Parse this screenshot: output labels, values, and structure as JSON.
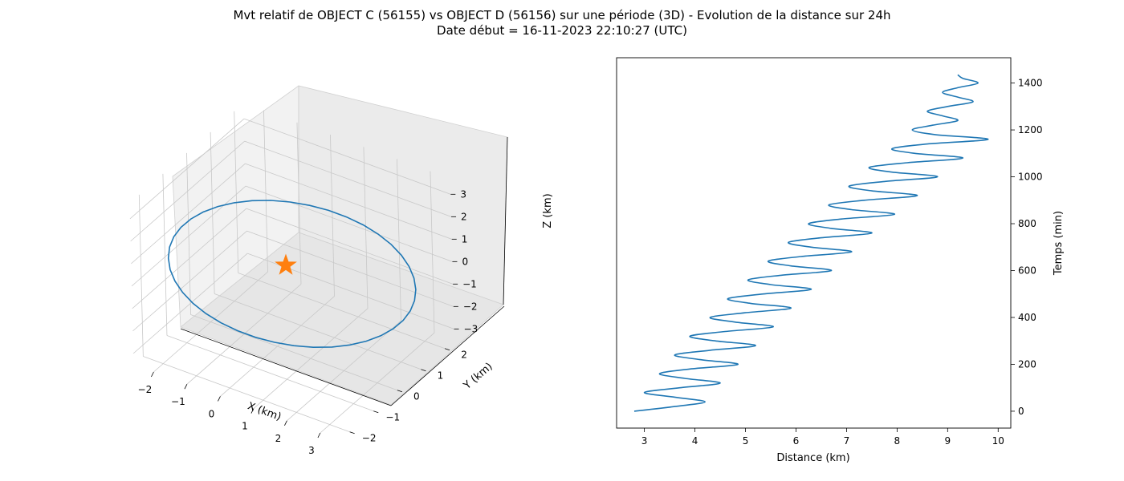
{
  "figure": {
    "title_line1": "Mvt relatif de OBJECT C (56155) vs OBJECT D (56156) sur une période (3D) - Evolution de la distance sur 24h",
    "title_line2": "Date début = 16-11-2023 22:10:27 (UTC)"
  },
  "chart_data": [
    {
      "type": "line3d",
      "title": "",
      "xlabel": "X (km)",
      "ylabel": "Y (km)",
      "zlabel": "Z (km)",
      "xlim": [
        -2.6,
        3.6
      ],
      "ylim": [
        -2.4,
        2.4
      ],
      "zlim": [
        -3.5,
        3.7
      ],
      "xticks": [
        "−2",
        "−1",
        "0",
        "1",
        "2",
        "3"
      ],
      "yticks": [
        "−2",
        "−1",
        "0",
        "1",
        "2"
      ],
      "zticks": [
        "−3",
        "−2",
        "−1",
        "0",
        "1",
        "2",
        "3"
      ],
      "grid": true,
      "line_color": "#1f77b4",
      "marker": {
        "shape": "star",
        "color": "#ff7f0e",
        "x": 0,
        "y": 0,
        "z": 0
      },
      "trajectory": {
        "x_center": 0.5,
        "x_amplitude": 3.0,
        "y_center": 0.0,
        "y_amplitude": 1.0,
        "z_amplitude": 3.2
      }
    },
    {
      "type": "line",
      "title": "",
      "xlabel": "Distance (km)",
      "ylabel": "Temps (min)",
      "xlim": [
        2.45,
        10.25
      ],
      "ylim": [
        -72,
        1508
      ],
      "xticks": [
        3,
        4,
        5,
        6,
        7,
        8,
        9,
        10
      ],
      "yticks": [
        0,
        200,
        400,
        600,
        800,
        1000,
        1200,
        1400
      ],
      "yaxis_position": "right",
      "grid": false,
      "line_color": "#1f77b4",
      "series": [
        {
          "time_min": [
            0,
            20,
            40,
            60,
            80,
            100,
            120,
            140,
            160,
            180,
            200,
            220,
            240,
            260,
            280,
            300,
            320,
            340,
            360,
            380,
            400,
            420,
            440,
            460,
            480,
            500,
            520,
            540,
            560,
            580,
            600,
            620,
            640,
            660,
            680,
            700,
            720,
            740,
            760,
            780,
            800,
            820,
            840,
            860,
            880,
            900,
            920,
            940,
            960,
            980,
            1000,
            1020,
            1040,
            1060,
            1080,
            1100,
            1120,
            1140,
            1160,
            1180,
            1200,
            1220,
            1240,
            1260,
            1280,
            1300,
            1320,
            1340,
            1360,
            1380,
            1400,
            1420,
            1435
          ],
          "distance_km": [
            2.8,
            3.6,
            4.2,
            3.6,
            3.0,
            3.7,
            4.5,
            3.8,
            3.3,
            3.9,
            4.85,
            4.1,
            3.6,
            4.3,
            5.2,
            4.4,
            3.9,
            4.6,
            5.55,
            4.8,
            4.3,
            5.0,
            5.9,
            5.1,
            4.65,
            5.35,
            6.3,
            5.5,
            5.05,
            5.7,
            6.7,
            5.9,
            5.45,
            6.1,
            7.1,
            6.3,
            5.85,
            6.5,
            7.5,
            6.7,
            6.25,
            6.9,
            7.95,
            7.1,
            6.65,
            7.35,
            8.4,
            7.5,
            7.05,
            7.75,
            8.8,
            7.9,
            7.45,
            8.2,
            9.3,
            8.35,
            7.9,
            8.6,
            9.8,
            8.75,
            8.3,
            8.7,
            9.2,
            8.9,
            8.6,
            9.0,
            9.5,
            9.2,
            8.9,
            9.2,
            9.6,
            9.3,
            9.2
          ]
        }
      ]
    }
  ]
}
